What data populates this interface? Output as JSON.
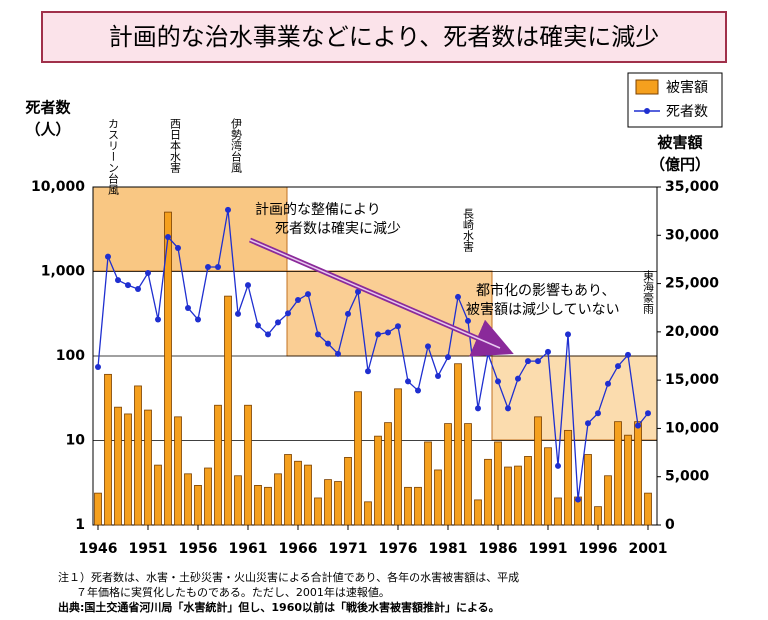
{
  "chart_data": {
    "type": "combo",
    "title": "計画的な治水事業などにより、死者数は確実に減少",
    "y_label": [
      "死者数",
      "（人）"
    ],
    "y2_label": [
      "被害額",
      "（億円）"
    ],
    "x": [
      1946,
      1947,
      1948,
      1949,
      1950,
      1951,
      1952,
      1953,
      1954,
      1955,
      1956,
      1957,
      1958,
      1959,
      1960,
      1961,
      1962,
      1963,
      1964,
      1965,
      1966,
      1967,
      1968,
      1969,
      1970,
      1971,
      1972,
      1973,
      1974,
      1975,
      1976,
      1977,
      1978,
      1979,
      1980,
      1981,
      1982,
      1983,
      1984,
      1985,
      1986,
      1987,
      1988,
      1989,
      1990,
      1991,
      1992,
      1993,
      1994,
      1995,
      1996,
      1997,
      1998,
      1999,
      2000,
      2001
    ],
    "xlim": [
      1945.5,
      2001.5
    ],
    "xticks": [
      1946,
      1951,
      1956,
      1961,
      1966,
      1971,
      1976,
      1981,
      1986,
      1991,
      1996,
      2001
    ],
    "ylim": [
      1,
      10000
    ],
    "log_y": true,
    "yticks": [
      1,
      10,
      100,
      {
        "value": 1000,
        "label": "1,000"
      },
      {
        "value": 10000,
        "label": "10,000"
      }
    ],
    "y2lim": [
      0,
      35000
    ],
    "y2ticks": [
      0,
      {
        "value": 5000,
        "label": "5,000"
      },
      {
        "value": 10000,
        "label": "10,000"
      },
      {
        "value": 15000,
        "label": "15,000"
      },
      {
        "value": 20000,
        "label": "20,000"
      },
      {
        "value": 25000,
        "label": "25,000"
      },
      {
        "value": 30000,
        "label": "30,000"
      },
      {
        "value": 35000,
        "label": "35,000"
      }
    ],
    "grid": true,
    "legend": "top-right",
    "series": [
      {
        "name": "被害額",
        "type": "bar",
        "axis": "y2",
        "color": "#f5a01e",
        "values": [
          3300,
          15600,
          12200,
          11500,
          14400,
          11900,
          6200,
          32400,
          11200,
          5300,
          4100,
          5900,
          12400,
          23700,
          5100,
          12400,
          4100,
          3900,
          5300,
          7300,
          6600,
          6200,
          2800,
          4700,
          4500,
          7000,
          13800,
          2400,
          9200,
          10600,
          14100,
          3900,
          3900,
          8600,
          5700,
          10500,
          16700,
          10500,
          2600,
          6800,
          8600,
          6000,
          6100,
          7100,
          11200,
          8000,
          2800,
          9800,
          2900,
          7300,
          1900,
          5100,
          10700,
          9300,
          10700,
          3300
        ]
      },
      {
        "name": "死者数",
        "type": "line",
        "axis": "y",
        "color": "#1f2fd0",
        "values": [
          74,
          1500,
          790,
          690,
          620,
          960,
          270,
          2560,
          1900,
          370,
          270,
          1130,
          1130,
          5370,
          315,
          690,
          230,
          180,
          250,
          320,
          460,
          540,
          180,
          140,
          106,
          315,
          575,
          66,
          180,
          190,
          225,
          50,
          39,
          130,
          58,
          97,
          500,
          260,
          24,
          106,
          50,
          24,
          54,
          87,
          87,
          112,
          5,
          180,
          2,
          16,
          21,
          47,
          76,
          103,
          15,
          21
        ]
      }
    ],
    "annotations": [
      "カスリーン台風",
      "西日本水害",
      "伊勢湾台風",
      "長崎水害",
      "東海豪雨"
    ],
    "callouts": [
      [
        "計画的な整備により",
        "死者数は確実に減少"
      ],
      [
        "都市化の影響もあり、",
        "被害額は減少していない"
      ]
    ],
    "notes": [
      "注１）死者数は、水害・土砂災害・火山災害による合計値であり、各年の水害被害額は、平成",
      "７年価格に実質化したものである。ただし、2001年は速報値。",
      "出典:国土交通省河川局「水害統計」但し、1960以前は「戦後水害被害額推計」による。"
    ]
  }
}
